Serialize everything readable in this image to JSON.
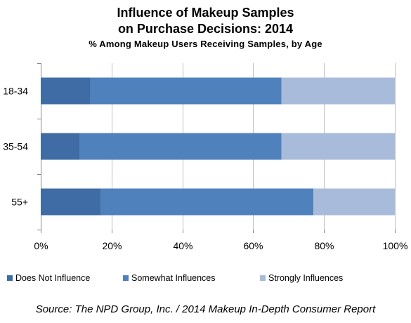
{
  "header": {
    "title_line1": "Influence of Makeup Samples",
    "title_line2": "on Purchase Decisions: 2014",
    "subtitle": "% Among Makeup Users Receiving Samples, by Age"
  },
  "chart_data": {
    "type": "bar",
    "orientation": "horizontal",
    "stacked": "percent",
    "categories": [
      "18-34",
      "35-54",
      "55+"
    ],
    "series": [
      {
        "name": "Does Not Influence",
        "values": [
          14,
          11,
          17
        ],
        "color": "#3F6CA5"
      },
      {
        "name": "Somewhat Influences",
        "values": [
          54,
          57,
          60
        ],
        "color": "#4F81BD"
      },
      {
        "name": "Strongly Influences",
        "values": [
          32,
          32,
          23
        ],
        "color": "#A9BBDA"
      }
    ],
    "xlim": [
      0,
      100
    ],
    "xticks": [
      "0%",
      "20%",
      "40%",
      "60%",
      "80%",
      "100%"
    ],
    "grid": true,
    "legend": "bottom"
  },
  "footer": {
    "source": "Source: The NPD Group, Inc. / 2014 Makeup In-Depth Consumer Report"
  }
}
